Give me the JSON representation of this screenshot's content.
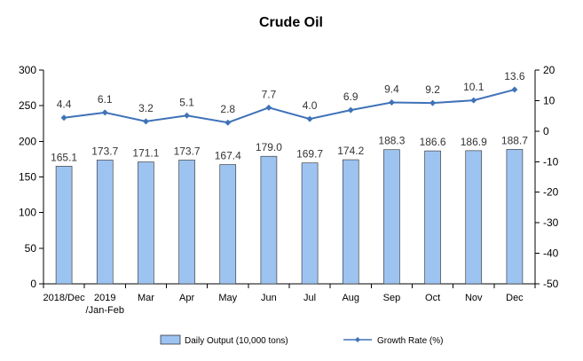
{
  "chart_data": {
    "type": "bar",
    "title": "Crude Oil",
    "categories": [
      [
        "2018/Dec"
      ],
      [
        "2019",
        "/Jan-Feb"
      ],
      [
        "Mar"
      ],
      [
        "Apr"
      ],
      [
        "May"
      ],
      [
        "Jun"
      ],
      [
        "Jul"
      ],
      [
        "Aug"
      ],
      [
        "Sep"
      ],
      [
        "Oct"
      ],
      [
        "Nov"
      ],
      [
        "Dec"
      ]
    ],
    "series": [
      {
        "name": "Daily Output (10,000 tons)",
        "type": "bar",
        "axis": "left",
        "color": "#9dc3f0",
        "values": [
          165.1,
          173.7,
          171.1,
          173.7,
          167.4,
          179.0,
          169.7,
          174.2,
          188.3,
          186.6,
          186.9,
          188.7
        ],
        "labels": [
          "165.1",
          "173.7",
          "171.1",
          "173.7",
          "167.4",
          "179.0",
          "169.7",
          "174.2",
          "188.3",
          "186.6",
          "186.9",
          "188.7"
        ]
      },
      {
        "name": "Growth Rate (%)",
        "type": "line",
        "axis": "right",
        "color": "#3f72b8",
        "values": [
          4.4,
          6.1,
          3.2,
          5.1,
          2.8,
          7.7,
          4.0,
          6.9,
          9.4,
          9.2,
          10.1,
          13.6
        ],
        "labels": [
          "4.4",
          "6.1",
          "3.2",
          "5.1",
          "2.8",
          "7.7",
          "4.0",
          "6.9",
          "9.4",
          "9.2",
          "10.1",
          "13.6"
        ]
      }
    ],
    "y_left": {
      "min": 0,
      "max": 300,
      "step": 50,
      "ticks": [
        "0",
        "50",
        "100",
        "150",
        "200",
        "250",
        "300"
      ]
    },
    "y_right": {
      "min": -50,
      "max": 20,
      "step": 10,
      "ticks": [
        "-50",
        "-40",
        "-30",
        "-20",
        "-10",
        "0",
        "10",
        "20"
      ]
    },
    "grid": false,
    "legend": "bottom"
  }
}
